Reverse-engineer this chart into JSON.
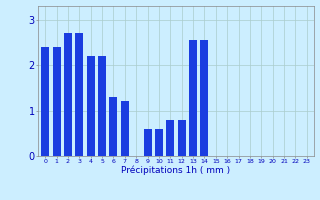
{
  "categories": [
    0,
    1,
    2,
    3,
    4,
    5,
    6,
    7,
    8,
    9,
    10,
    11,
    12,
    13,
    14,
    15,
    16,
    17,
    18,
    19,
    20,
    21,
    22,
    23
  ],
  "values": [
    2.4,
    2.4,
    2.7,
    2.7,
    2.2,
    2.2,
    1.3,
    1.2,
    0.0,
    0.6,
    0.6,
    0.8,
    0.8,
    2.55,
    2.55,
    0.0,
    0.0,
    0.0,
    0.0,
    0.0,
    0.0,
    0.0,
    0.0,
    0.0
  ],
  "bar_color": "#1a3de0",
  "background_color": "#cceeff",
  "grid_color": "#aacccc",
  "xlabel": "Précipitations 1h ( mm )",
  "xlabel_color": "#0000bb",
  "tick_color": "#0000bb",
  "ylim": [
    0,
    3.3
  ],
  "yticks": [
    0,
    1,
    2,
    3
  ],
  "figsize": [
    3.2,
    2.0
  ],
  "dpi": 100
}
